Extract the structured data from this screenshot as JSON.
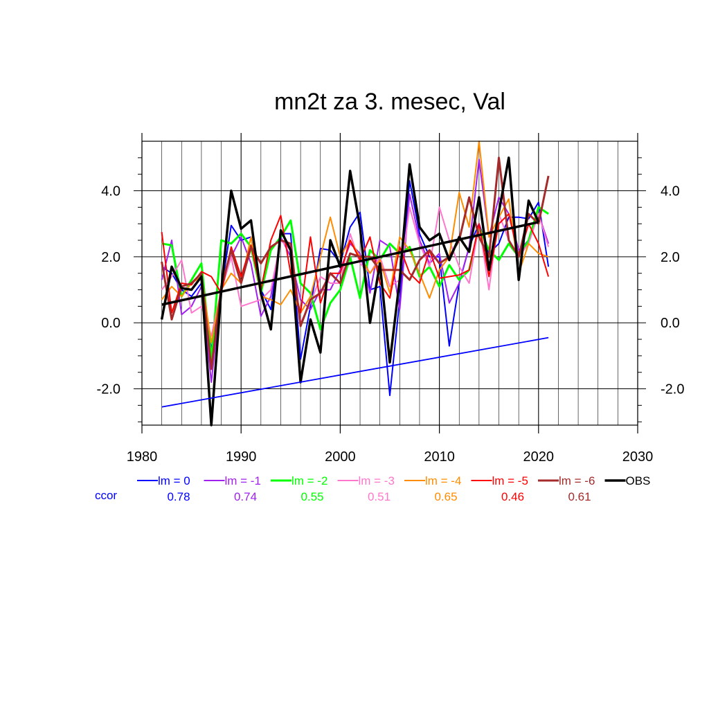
{
  "chart_data": {
    "type": "line",
    "title": "mn2t za 3. mesec, Val",
    "xlabel": "",
    "ylabel": "",
    "xlim": [
      1980,
      2030
    ],
    "ylim": [
      -3.1,
      5.5
    ],
    "x_ticks": [
      1980,
      1990,
      2000,
      2010,
      2020,
      2030
    ],
    "y_ticks": [
      -2.0,
      0.0,
      2.0,
      4.0
    ],
    "y_tick_labels": [
      "-2.0",
      "0.0",
      "2.0",
      "4.0"
    ],
    "grid": true,
    "legend_position": "bottom",
    "ccor_label": "ccor",
    "x": [
      1982,
      1983,
      1984,
      1985,
      1986,
      1987,
      1988,
      1989,
      1990,
      1991,
      1992,
      1993,
      1994,
      1995,
      1996,
      1997,
      1998,
      1999,
      2000,
      2001,
      2002,
      2003,
      2004,
      2005,
      2006,
      2007,
      2008,
      2009,
      2010,
      2011,
      2012,
      2013,
      2014,
      2015,
      2016,
      2017,
      2018,
      2019,
      2020,
      2021
    ],
    "series": [
      {
        "name": "lm = 0",
        "ccor": "0.78",
        "color": "#0000ff",
        "width": 2,
        "values": [
          1.7,
          1.5,
          1.0,
          0.8,
          1.2,
          -0.8,
          1.0,
          2.95,
          2.5,
          2.6,
          1.0,
          0.4,
          2.7,
          2.7,
          -1.1,
          0.5,
          2.25,
          2.2,
          1.8,
          2.9,
          3.35,
          1.0,
          1.1,
          -2.2,
          0.7,
          4.3,
          2.7,
          2.0,
          2.0,
          -0.7,
          1.2,
          2.3,
          3.0,
          2.1,
          2.4,
          3.2,
          3.2,
          3.15,
          3.65,
          1.7
        ]
      },
      {
        "name": "lm = -1",
        "ccor": "0.74",
        "color": "#a020f0",
        "width": 2,
        "values": [
          1.3,
          2.5,
          0.25,
          0.5,
          1.1,
          -1.8,
          1.0,
          2.0,
          2.6,
          1.8,
          0.2,
          0.8,
          2.6,
          2.0,
          0.7,
          0.4,
          1.0,
          1.0,
          1.6,
          2.4,
          2.1,
          0.9,
          2.5,
          2.3,
          0.4,
          3.9,
          2.5,
          1.8,
          2.1,
          0.6,
          1.2,
          2.3,
          4.95,
          2.6,
          3.8,
          3.3,
          2.2,
          2.5,
          3.3,
          2.4
        ]
      },
      {
        "name": "lm = -2",
        "ccor": "0.55",
        "color": "#00ff00",
        "width": 3,
        "values": [
          2.4,
          2.35,
          0.8,
          1.3,
          1.8,
          -1.1,
          2.5,
          2.4,
          2.7,
          2.3,
          0.9,
          2.2,
          2.6,
          3.1,
          1.2,
          0.9,
          -0.2,
          0.6,
          1.0,
          2.0,
          0.75,
          2.2,
          1.9,
          2.4,
          2.1,
          2.3,
          1.4,
          1.7,
          1.1,
          1.75,
          1.3,
          1.6,
          2.9,
          2.2,
          1.9,
          2.4,
          2.0,
          2.5,
          3.5,
          3.3
        ]
      },
      {
        "name": "lm = -3",
        "ccor": "0.51",
        "color": "#ff77cc",
        "width": 2,
        "values": [
          1.0,
          1.4,
          1.9,
          0.3,
          0.5,
          -0.4,
          1.0,
          2.0,
          0.5,
          0.6,
          0.7,
          1.0,
          2.5,
          2.2,
          0.0,
          0.6,
          1.4,
          1.2,
          1.2,
          2.7,
          1.8,
          1.5,
          2.0,
          1.1,
          1.3,
          3.5,
          2.4,
          1.7,
          3.5,
          2.5,
          1.7,
          1.2,
          3.0,
          1.0,
          3.3,
          2.5,
          2.0,
          2.4,
          3.3,
          2.3
        ]
      },
      {
        "name": "lm = -4",
        "ccor": "0.65",
        "color": "#ff8c00",
        "width": 2,
        "values": [
          0.7,
          1.1,
          0.8,
          1.2,
          1.4,
          -0.6,
          1.0,
          1.5,
          1.2,
          2.6,
          0.8,
          0.7,
          0.55,
          1.0,
          0.3,
          0.8,
          2.0,
          3.2,
          2.0,
          2.5,
          2.0,
          1.5,
          1.9,
          0.9,
          2.6,
          2.2,
          1.5,
          0.75,
          1.6,
          2.0,
          3.95,
          2.9,
          5.5,
          2.6,
          3.2,
          3.75,
          1.5,
          2.4,
          2.1,
          2.0
        ]
      },
      {
        "name": "lm = -5",
        "ccor": "0.46",
        "color": "#ff0000",
        "width": 2,
        "values": [
          2.75,
          0.3,
          1.2,
          1.15,
          1.55,
          1.4,
          0.9,
          2.3,
          1.4,
          2.35,
          1.0,
          2.5,
          3.25,
          1.5,
          0.3,
          2.6,
          0.6,
          1.5,
          1.5,
          2.5,
          1.9,
          2.6,
          1.2,
          0.75,
          2.3,
          1.5,
          1.2,
          2.2,
          1.35,
          1.4,
          1.45,
          1.6,
          3.0,
          1.4,
          3.0,
          3.3,
          2.0,
          3.0,
          2.4,
          1.4
        ]
      },
      {
        "name": "lm = -6",
        "ccor": "0.61",
        "color": "#a52a2a",
        "width": 3,
        "values": [
          1.85,
          0.1,
          1.1,
          1.2,
          1.5,
          -1.4,
          1.1,
          2.2,
          1.2,
          2.3,
          1.8,
          2.3,
          2.5,
          2.4,
          -0.1,
          0.7,
          0.9,
          1.5,
          1.2,
          2.1,
          2.0,
          2.0,
          1.6,
          1.6,
          1.6,
          1.3,
          1.9,
          2.2,
          1.8,
          2.0,
          2.5,
          3.8,
          2.6,
          2.0,
          5.0,
          2.5,
          2.0,
          3.3,
          3.0,
          4.45
        ]
      },
      {
        "name": "OBS",
        "ccor": "",
        "color": "#000000",
        "width": 3.5,
        "values": [
          0.1,
          1.7,
          1.05,
          1.0,
          1.4,
          -3.1,
          1.0,
          4.0,
          2.85,
          3.1,
          0.9,
          -0.2,
          2.8,
          2.2,
          -1.8,
          0.1,
          -0.9,
          2.5,
          1.7,
          4.6,
          2.9,
          0.0,
          1.8,
          -1.2,
          1.3,
          4.8,
          2.9,
          2.5,
          2.7,
          1.9,
          2.6,
          2.15,
          3.8,
          1.6,
          3.35,
          5.0,
          1.3,
          3.7,
          3.05,
          null
        ]
      }
    ],
    "trend_lines": [
      {
        "color": "#000000",
        "width": 3.5,
        "x": [
          1982,
          2020
        ],
        "y": [
          0.55,
          3.05
        ]
      },
      {
        "color": "#0000ff",
        "width": 1.8,
        "x": [
          1982,
          2021
        ],
        "y": [
          -2.55,
          -0.45
        ]
      }
    ]
  }
}
